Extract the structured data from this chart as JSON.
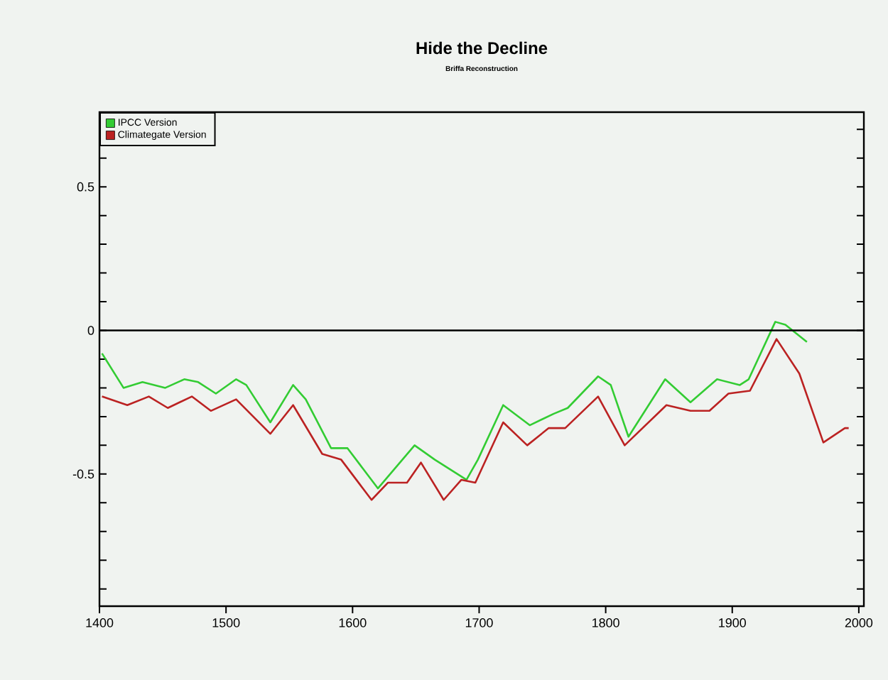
{
  "chart_data": {
    "type": "line",
    "title": "Hide the Decline",
    "subtitle": "Briffa Reconstruction",
    "x": [
      1402,
      1419,
      1434,
      1452,
      1467,
      1478,
      1492,
      1508,
      1516,
      1535,
      1553,
      1563,
      1583,
      1596,
      1620,
      1649,
      1665,
      1690,
      1699,
      1719,
      1740,
      1759,
      1770,
      1794,
      1804,
      1818,
      1847,
      1867,
      1888,
      1906,
      1913,
      1934,
      1942,
      1959
    ],
    "series": [
      {
        "name": "IPCC Version",
        "color": "#33cc33",
        "values": [
          -0.08,
          -0.2,
          -0.18,
          -0.2,
          -0.17,
          -0.18,
          -0.22,
          -0.17,
          -0.19,
          -0.32,
          -0.19,
          -0.24,
          -0.41,
          -0.41,
          -0.55,
          -0.4,
          -0.45,
          -0.52,
          -0.45,
          -0.26,
          -0.33,
          -0.29,
          -0.27,
          -0.16,
          -0.19,
          -0.37,
          -0.17,
          -0.25,
          -0.17,
          -0.19,
          -0.17,
          0.03,
          0.02,
          -0.04
        ]
      },
      {
        "name": "Climategate Version",
        "color": "#bb2222",
        "x": [
          1402,
          1422,
          1439,
          1454,
          1473,
          1488,
          1508,
          1535,
          1553,
          1576,
          1591,
          1615,
          1628,
          1643,
          1654,
          1672,
          1686,
          1697,
          1719,
          1738,
          1755,
          1768,
          1794,
          1815,
          1848,
          1867,
          1882,
          1897,
          1914,
          1935,
          1953,
          1972,
          1989,
          1992
        ],
        "values": [
          -0.23,
          -0.26,
          -0.23,
          -0.27,
          -0.23,
          -0.28,
          -0.24,
          -0.36,
          -0.26,
          -0.43,
          -0.45,
          -0.59,
          -0.53,
          -0.53,
          -0.46,
          -0.59,
          -0.52,
          -0.53,
          -0.32,
          -0.4,
          -0.34,
          -0.34,
          -0.23,
          -0.4,
          -0.26,
          -0.28,
          -0.28,
          -0.22,
          -0.21,
          -0.03,
          -0.15,
          -0.39,
          -0.34,
          -0.34
        ]
      }
    ],
    "xlim": [
      1400,
      2004
    ],
    "ylim": [
      -0.96,
      0.76
    ],
    "xticks": [
      1400,
      1500,
      1600,
      1700,
      1800,
      1900,
      2000
    ],
    "yticks": [
      {
        "value": -0.9,
        "label": null
      },
      {
        "value": -0.8,
        "label": null
      },
      {
        "value": -0.7,
        "label": null
      },
      {
        "value": -0.6,
        "label": null
      },
      -0.5,
      {
        "value": -0.4,
        "label": null
      },
      {
        "value": -0.3,
        "label": null
      },
      {
        "value": -0.2,
        "label": null
      },
      {
        "value": -0.1,
        "label": null
      },
      0,
      {
        "value": 0.1,
        "label": null
      },
      {
        "value": 0.2,
        "label": null
      },
      {
        "value": 0.3,
        "label": null
      },
      {
        "value": 0.4,
        "label": null
      },
      0.5,
      {
        "value": 0.6,
        "label": null
      },
      {
        "value": 0.7,
        "label": null
      }
    ],
    "ref_lines": [
      {
        "axis": "y",
        "value": 0,
        "color": "#000000"
      }
    ],
    "legend": "top left",
    "grid": false,
    "marker": "none",
    "line_style": "solid"
  }
}
